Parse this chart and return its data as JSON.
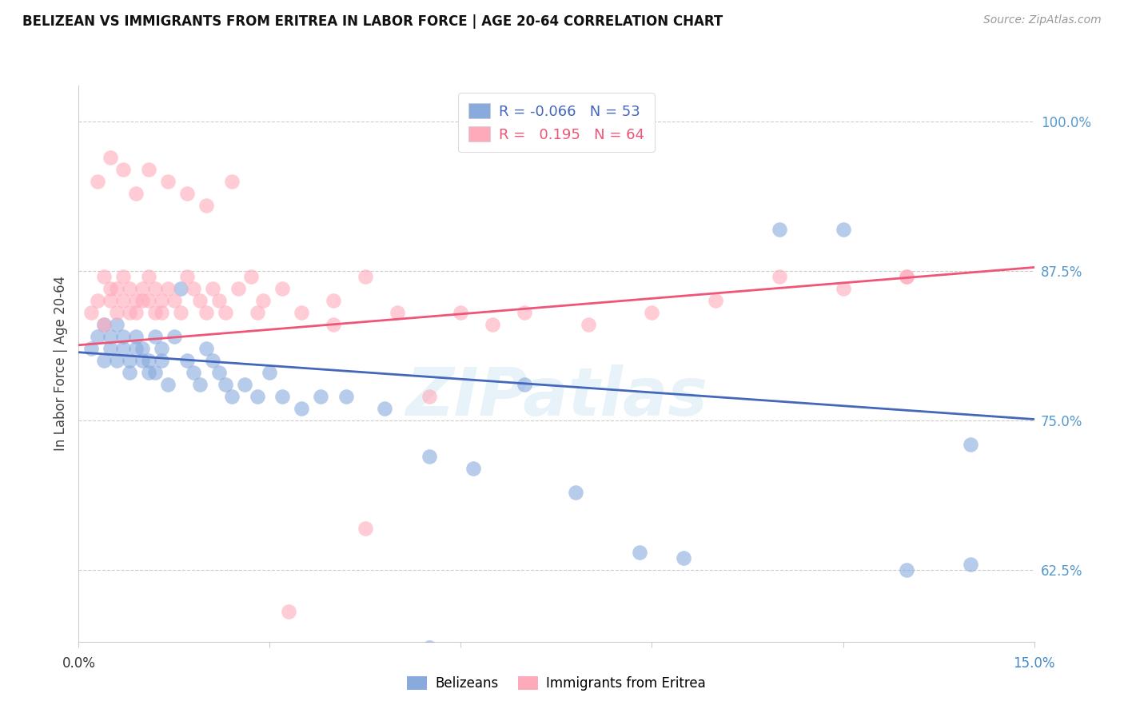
{
  "title": "BELIZEAN VS IMMIGRANTS FROM ERITREA IN LABOR FORCE | AGE 20-64 CORRELATION CHART",
  "source": "Source: ZipAtlas.com",
  "ylabel": "In Labor Force | Age 20-64",
  "ytick_labels": [
    "62.5%",
    "75.0%",
    "87.5%",
    "100.0%"
  ],
  "ytick_values": [
    0.625,
    0.75,
    0.875,
    1.0
  ],
  "xlim": [
    0.0,
    0.15
  ],
  "ylim": [
    0.565,
    1.03
  ],
  "legend_blue_label": "R = -0.066   N = 53",
  "legend_pink_label": "R =   0.195   N = 64",
  "bottom_legend_blue": "Belizeans",
  "bottom_legend_pink": "Immigrants from Eritrea",
  "blue_color": "#88aadd",
  "pink_color": "#ffaabb",
  "blue_line_color": "#4466bb",
  "pink_line_color": "#ee5577",
  "blue_line_y0": 0.807,
  "blue_line_y1": 0.751,
  "pink_line_y0": 0.813,
  "pink_line_y1": 0.878,
  "watermark": "ZIPatlas",
  "watermark_color": "#bbddee",
  "blue_x": [
    0.002,
    0.003,
    0.004,
    0.004,
    0.005,
    0.005,
    0.006,
    0.006,
    0.007,
    0.007,
    0.008,
    0.008,
    0.009,
    0.009,
    0.01,
    0.01,
    0.011,
    0.011,
    0.012,
    0.012,
    0.013,
    0.013,
    0.014,
    0.015,
    0.016,
    0.017,
    0.018,
    0.019,
    0.02,
    0.021,
    0.022,
    0.023,
    0.024,
    0.026,
    0.028,
    0.03,
    0.032,
    0.035,
    0.038,
    0.042,
    0.048,
    0.055,
    0.062,
    0.07,
    0.078,
    0.088,
    0.095,
    0.11,
    0.12,
    0.13,
    0.14,
    0.14,
    0.055
  ],
  "blue_y": [
    0.81,
    0.82,
    0.8,
    0.83,
    0.81,
    0.82,
    0.8,
    0.83,
    0.81,
    0.82,
    0.8,
    0.79,
    0.81,
    0.82,
    0.8,
    0.81,
    0.79,
    0.8,
    0.82,
    0.79,
    0.81,
    0.8,
    0.78,
    0.82,
    0.86,
    0.8,
    0.79,
    0.78,
    0.81,
    0.8,
    0.79,
    0.78,
    0.77,
    0.78,
    0.77,
    0.79,
    0.77,
    0.76,
    0.77,
    0.77,
    0.76,
    0.72,
    0.71,
    0.78,
    0.69,
    0.64,
    0.635,
    0.91,
    0.91,
    0.625,
    0.63,
    0.73,
    0.56
  ],
  "pink_x": [
    0.002,
    0.003,
    0.004,
    0.004,
    0.005,
    0.005,
    0.006,
    0.006,
    0.007,
    0.007,
    0.008,
    0.008,
    0.009,
    0.009,
    0.01,
    0.01,
    0.011,
    0.011,
    0.012,
    0.012,
    0.013,
    0.013,
    0.014,
    0.015,
    0.016,
    0.017,
    0.018,
    0.019,
    0.02,
    0.021,
    0.022,
    0.023,
    0.025,
    0.027,
    0.029,
    0.032,
    0.035,
    0.04,
    0.045,
    0.05,
    0.055,
    0.06,
    0.065,
    0.07,
    0.08,
    0.09,
    0.1,
    0.11,
    0.12,
    0.13,
    0.003,
    0.005,
    0.007,
    0.009,
    0.011,
    0.014,
    0.017,
    0.02,
    0.024,
    0.028,
    0.033,
    0.04,
    0.045,
    0.13
  ],
  "pink_y": [
    0.84,
    0.85,
    0.83,
    0.87,
    0.85,
    0.86,
    0.84,
    0.86,
    0.85,
    0.87,
    0.84,
    0.86,
    0.85,
    0.84,
    0.86,
    0.85,
    0.87,
    0.85,
    0.84,
    0.86,
    0.85,
    0.84,
    0.86,
    0.85,
    0.84,
    0.87,
    0.86,
    0.85,
    0.84,
    0.86,
    0.85,
    0.84,
    0.86,
    0.87,
    0.85,
    0.86,
    0.84,
    0.85,
    0.87,
    0.84,
    0.77,
    0.84,
    0.83,
    0.84,
    0.83,
    0.84,
    0.85,
    0.87,
    0.86,
    0.87,
    0.95,
    0.97,
    0.96,
    0.94,
    0.96,
    0.95,
    0.94,
    0.93,
    0.95,
    0.84,
    0.59,
    0.83,
    0.66,
    0.87
  ]
}
